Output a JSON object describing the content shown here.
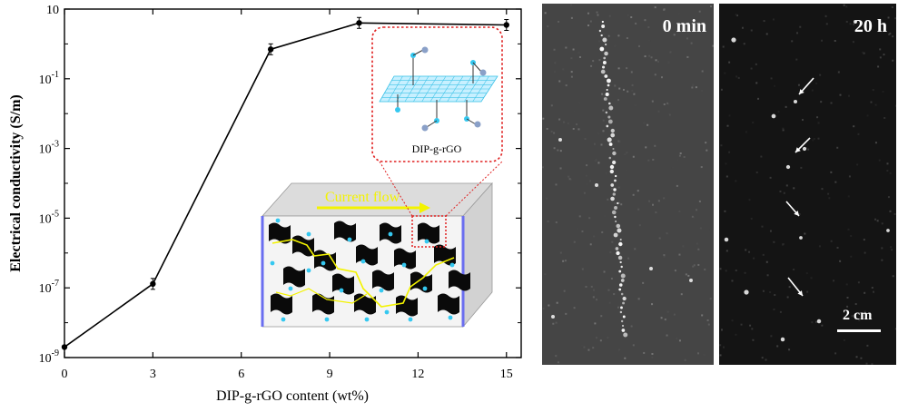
{
  "chart_data": {
    "type": "line",
    "xlabel": "DIP-g-rGO content (wt%)",
    "ylabel": "Electrical conductivity (S/m)",
    "x": [
      0,
      3,
      7,
      10,
      15
    ],
    "y": [
      2e-09,
      1.3e-07,
      0.7,
      4,
      3.5
    ],
    "x_ticks": [
      "0",
      "3",
      "6",
      "9",
      "12",
      "15"
    ],
    "y_ticks": [
      {
        "base": "10",
        "exp": "-9"
      },
      {
        "base": "10",
        "exp": "-7"
      },
      {
        "base": "10",
        "exp": "-5"
      },
      {
        "base": "10",
        "exp": "-3"
      },
      {
        "base": "10",
        "exp": "-1"
      },
      {
        "base": "10",
        "exp": ""
      }
    ],
    "xlim": [
      0,
      15.5
    ],
    "ylim": [
      1e-09,
      10
    ],
    "yscale": "log",
    "error_bars": true,
    "grid": false
  },
  "inset": {
    "callout_label": "DIP-g-rGO",
    "current_label": "Current flow",
    "current_color": "#f3f300",
    "callout_border_color": "#e02020",
    "electrode_color": "#6a6ef0",
    "bead_color": "#35c8f0"
  },
  "photos": {
    "left_label": "0 min",
    "right_label": "20 h",
    "scale_bar_label": "2 cm"
  }
}
